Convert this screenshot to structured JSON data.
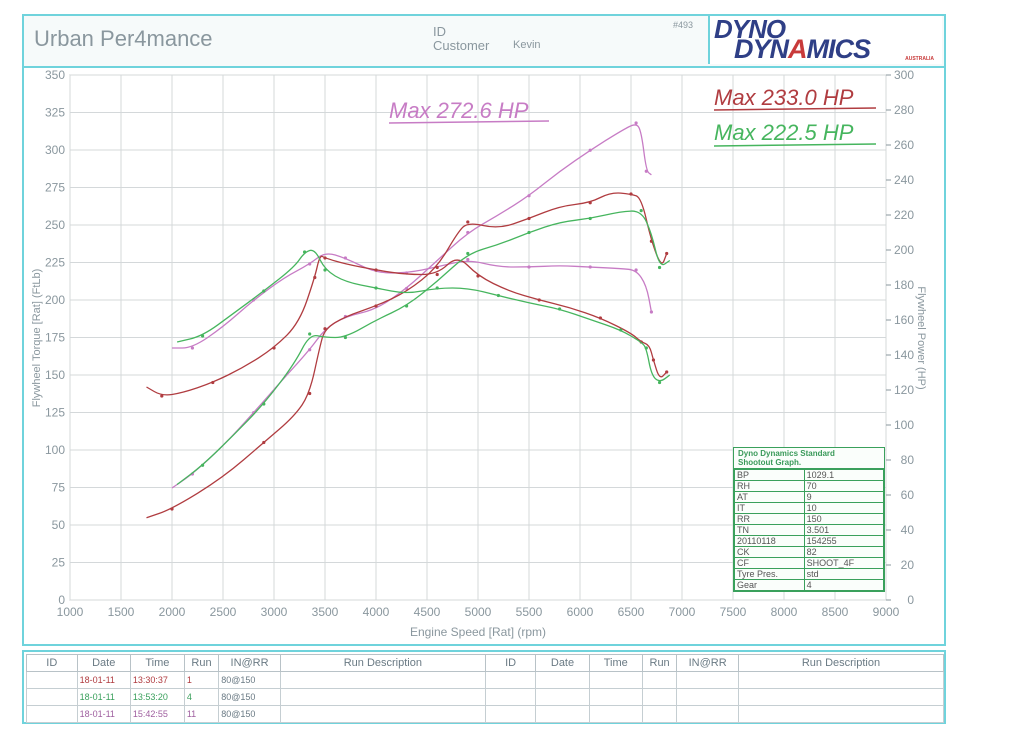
{
  "header": {
    "shop_name": "Urban Per4mance",
    "id_label": "ID",
    "customer_label": "Customer",
    "customer_name": "Kevin",
    "sheet_number": "#493",
    "logo_line1": "DYNO",
    "logo_line2_a": "DYN",
    "logo_line2_b": "A",
    "logo_line2_c": "MICS",
    "logo_sub": "AUSTRALIA"
  },
  "annotations": {
    "max_pink": "Max 272.6 HP",
    "max_red": "Max 233.0 HP",
    "max_green": "Max 222.5 HP"
  },
  "colors": {
    "pink": "#c77cc5",
    "red": "#b03c40",
    "green": "#46b55e",
    "grid": "#d4d8da",
    "axis_text": "#8a979e",
    "border": "#6fd3dc"
  },
  "conditions": {
    "title_line1": "Dyno Dynamics Standard",
    "title_line2": "Shootout Graph.",
    "rows": [
      [
        "BP",
        "1029.1"
      ],
      [
        "RH",
        "70"
      ],
      [
        "AT",
        "9"
      ],
      [
        "IT",
        "10"
      ],
      [
        "RR",
        "150"
      ],
      [
        "TN",
        "3.501"
      ],
      [
        "20110118",
        "154255"
      ],
      [
        "CK",
        "82"
      ],
      [
        "CF",
        "SHOOT_4F"
      ],
      [
        "Tyre Pres.",
        "std"
      ],
      [
        "Gear",
        "4"
      ]
    ]
  },
  "run_table": {
    "headers": [
      "ID",
      "Date",
      "Time",
      "Run",
      "IN@RR",
      "Run Description",
      "ID",
      "Date",
      "Time",
      "Run",
      "IN@RR",
      "Run Description"
    ],
    "rows": [
      {
        "id": "",
        "date": "18-01-11",
        "time": "13:30:37",
        "run": "1",
        "inrr": "80@150",
        "color": "#b03c40"
      },
      {
        "id": "",
        "date": "18-01-11",
        "time": "13:53:20",
        "run": "4",
        "inrr": "80@150",
        "color": "#3aa05c"
      },
      {
        "id": "",
        "date": "18-01-11",
        "time": "15:42:55",
        "run": "11",
        "inrr": "80@150",
        "color": "#a060a0"
      }
    ]
  },
  "chart_data": {
    "type": "line",
    "xlabel": "Engine Speed [Rat] (rpm)",
    "ylabel": "Flywheel Torque [Rat] (FtLb)",
    "y2label": "Flywheel Power (HP)",
    "xlim": [
      1000,
      9000
    ],
    "ylim": [
      0,
      350
    ],
    "y2lim": [
      0,
      300
    ],
    "x_ticks": [
      1000,
      1500,
      2000,
      2500,
      3000,
      3500,
      4000,
      4500,
      5000,
      5500,
      6000,
      6500,
      7000,
      7500,
      8000,
      8500,
      9000
    ],
    "y_ticks": [
      0,
      25,
      50,
      75,
      100,
      125,
      150,
      175,
      200,
      225,
      250,
      275,
      300,
      325,
      350
    ],
    "y2_ticks": [
      0,
      20,
      40,
      60,
      80,
      100,
      120,
      140,
      160,
      180,
      200,
      220,
      240,
      260,
      280,
      300
    ],
    "grid": true,
    "series": [
      {
        "name": "",
        "color": "#c77cc5",
        "kind": "torque",
        "x": [
          2000,
          2200,
          2500,
          2800,
          3100,
          3350,
          3500,
          3700,
          4000,
          4300,
          4600,
          4900,
          5200,
          5500,
          5800,
          6100,
          6400,
          6550,
          6650,
          6700
        ],
        "y": [
          168,
          168,
          182,
          200,
          215,
          224,
          232,
          228,
          218,
          218,
          222,
          227,
          222,
          222,
          223,
          222,
          221,
          220,
          210,
          192
        ]
      },
      {
        "name": "",
        "color": "#c77cc5",
        "kind": "power",
        "x": [
          2000,
          2200,
          2500,
          2800,
          3100,
          3350,
          3500,
          3700,
          4000,
          4300,
          4600,
          4900,
          5200,
          5500,
          5800,
          6100,
          6400,
          6550,
          6600,
          6650,
          6700
        ],
        "y": [
          64,
          72,
          88,
          107,
          127,
          143,
          155,
          162,
          166,
          178,
          194,
          210,
          220,
          231,
          245,
          257,
          268,
          272.6,
          268,
          245,
          243
        ]
      },
      {
        "name": "",
        "color": "#b03c40",
        "kind": "torque",
        "x": [
          1750,
          1900,
          2100,
          2400,
          2700,
          3000,
          3250,
          3400,
          3450,
          3500,
          3700,
          4000,
          4300,
          4600,
          4800,
          5000,
          5300,
          5600,
          5900,
          6200,
          6500,
          6600,
          6680,
          6720,
          6780,
          6850
        ],
        "y": [
          142,
          136,
          138,
          145,
          155,
          168,
          185,
          215,
          230,
          228,
          224,
          220,
          217,
          217,
          230,
          216,
          206,
          200,
          195,
          188,
          178,
          172,
          170,
          160,
          147,
          152
        ]
      },
      {
        "name": "",
        "color": "#b03c40",
        "kind": "power",
        "x": [
          1750,
          2000,
          2500,
          2900,
          3200,
          3350,
          3450,
          3500,
          3700,
          4000,
          4300,
          4600,
          4800,
          4900,
          5200,
          5500,
          5800,
          6100,
          6300,
          6500,
          6600,
          6700,
          6800,
          6850
        ],
        "y": [
          47,
          52,
          70,
          90,
          105,
          118,
          145,
          155,
          162,
          168,
          176,
          190,
          210,
          216,
          212,
          218,
          225,
          227,
          233,
          232,
          230,
          205,
          190,
          198
        ]
      },
      {
        "name": "",
        "color": "#46b55e",
        "kind": "torque",
        "x": [
          2050,
          2300,
          2600,
          2900,
          3200,
          3300,
          3400,
          3500,
          3700,
          4000,
          4300,
          4600,
          4900,
          5200,
          5500,
          5800,
          6100,
          6400,
          6600,
          6650,
          6700,
          6780,
          6880
        ],
        "y": [
          172,
          176,
          191,
          206,
          222,
          232,
          234,
          220,
          212,
          208,
          204,
          208,
          208,
          203,
          198,
          194,
          187,
          180,
          172,
          168,
          150,
          145,
          150
        ]
      },
      {
        "name": "",
        "color": "#46b55e",
        "kind": "power",
        "x": [
          2050,
          2300,
          2600,
          2900,
          3200,
          3350,
          3500,
          3700,
          4000,
          4300,
          4600,
          4900,
          5200,
          5500,
          5800,
          6100,
          6400,
          6600,
          6700,
          6780,
          6880
        ],
        "y": [
          66,
          77,
          94,
          112,
          135,
          152,
          150,
          150,
          160,
          168,
          182,
          198,
          203,
          210,
          216,
          218,
          222,
          222.5,
          210,
          190,
          194
        ]
      }
    ]
  }
}
